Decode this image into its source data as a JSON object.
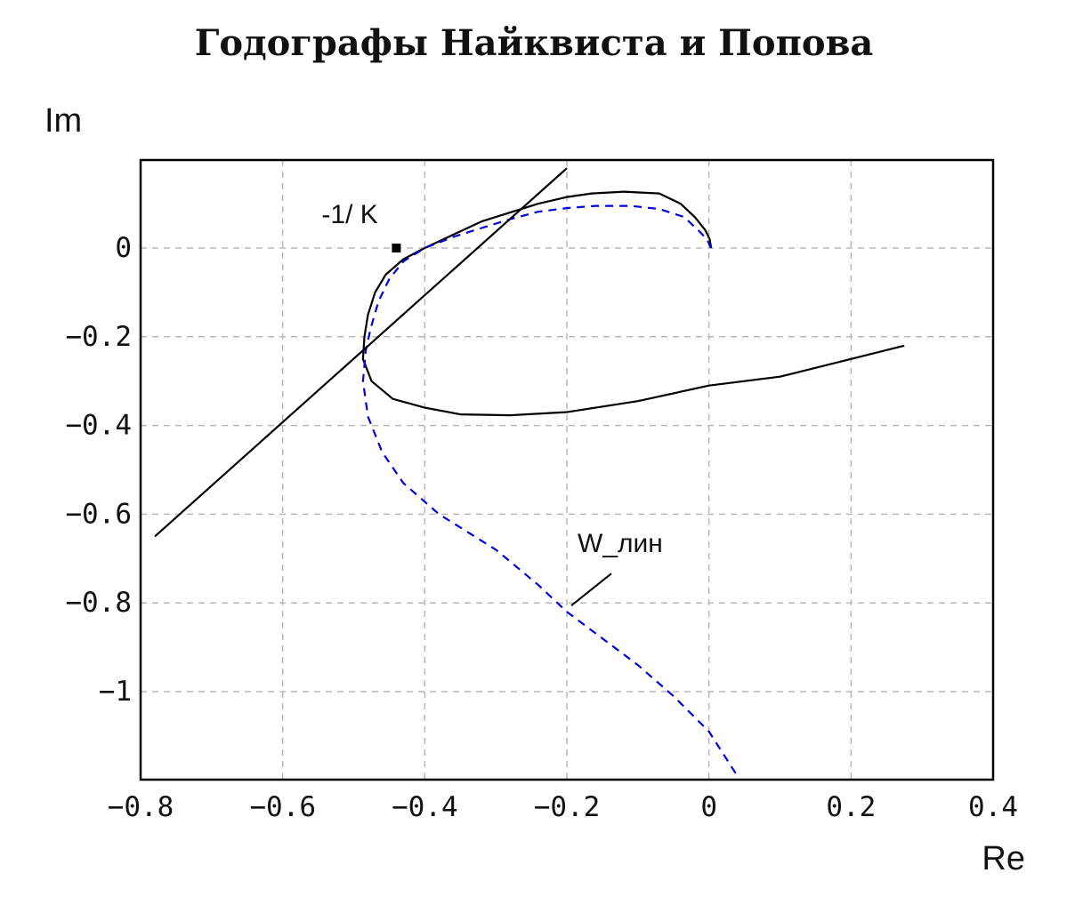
{
  "chart_data": {
    "type": "line",
    "title": "Годографы Найквиста и Попова",
    "xlabel": "Re",
    "ylabel": "Im",
    "xlim": [
      -0.8,
      0.4
    ],
    "ylim": [
      -1.19,
      0.2
    ],
    "grid": true,
    "x_ticks": [
      {
        "value": -0.8,
        "label": "−0.8"
      },
      {
        "value": -0.6,
        "label": "−0.6"
      },
      {
        "value": -0.4,
        "label": "−0.4"
      },
      {
        "value": -0.2,
        "label": "−0.2"
      },
      {
        "value": 0,
        "label": "0"
      },
      {
        "value": 0.2,
        "label": "0.2"
      },
      {
        "value": 0.4,
        "label": "0.4"
      }
    ],
    "y_ticks": [
      {
        "value": 0,
        "label": "0"
      },
      {
        "value": -0.2,
        "label": "−0.2"
      },
      {
        "value": -0.4,
        "label": "−0.4"
      },
      {
        "value": -0.6,
        "label": "−0.6"
      },
      {
        "value": -0.8,
        "label": "−0.8"
      },
      {
        "value": -1,
        "label": "−1"
      }
    ],
    "series": [
      {
        "color": "#000000",
        "style": "solid",
        "points": [
          [
            0.003,
            0.0
          ],
          [
            0.001,
            0.02
          ],
          [
            -0.005,
            0.04
          ],
          [
            -0.02,
            0.07
          ],
          [
            -0.04,
            0.1
          ],
          [
            -0.07,
            0.123
          ],
          [
            -0.12,
            0.127
          ],
          [
            -0.165,
            0.123
          ],
          [
            -0.2,
            0.115
          ],
          [
            -0.24,
            0.1
          ],
          [
            -0.28,
            0.08
          ],
          [
            -0.32,
            0.06
          ],
          [
            -0.36,
            0.03
          ],
          [
            -0.4,
            0.0
          ],
          [
            -0.43,
            -0.025
          ],
          [
            -0.455,
            -0.06
          ],
          [
            -0.47,
            -0.1
          ],
          [
            -0.48,
            -0.15
          ],
          [
            -0.485,
            -0.2
          ],
          [
            -0.487,
            -0.25
          ],
          [
            -0.475,
            -0.3
          ],
          [
            -0.445,
            -0.34
          ],
          [
            -0.4,
            -0.36
          ],
          [
            -0.35,
            -0.375
          ],
          [
            -0.28,
            -0.377
          ],
          [
            -0.2,
            -0.37
          ],
          [
            -0.1,
            -0.345
          ],
          [
            0.0,
            -0.31
          ],
          [
            0.1,
            -0.29
          ],
          [
            0.2,
            -0.25
          ],
          [
            0.275,
            -0.22
          ]
        ]
      },
      {
        "color": "#0000dd",
        "style": "dashed",
        "points": [
          [
            0.003,
            0.0
          ],
          [
            -0.003,
            0.02
          ],
          [
            -0.015,
            0.04
          ],
          [
            -0.035,
            0.07
          ],
          [
            -0.07,
            0.088
          ],
          [
            -0.11,
            0.095
          ],
          [
            -0.16,
            0.095
          ],
          [
            -0.2,
            0.09
          ],
          [
            -0.24,
            0.082
          ],
          [
            -0.28,
            0.065
          ],
          [
            -0.32,
            0.045
          ],
          [
            -0.36,
            0.025
          ],
          [
            -0.4,
            0.0
          ],
          [
            -0.43,
            -0.03
          ],
          [
            -0.45,
            -0.07
          ],
          [
            -0.465,
            -0.12
          ],
          [
            -0.476,
            -0.18
          ],
          [
            -0.483,
            -0.23
          ],
          [
            -0.487,
            -0.3
          ],
          [
            -0.48,
            -0.38
          ],
          [
            -0.46,
            -0.46
          ],
          [
            -0.43,
            -0.53
          ],
          [
            -0.38,
            -0.6
          ],
          [
            -0.3,
            -0.68
          ],
          [
            -0.24,
            -0.76
          ],
          [
            -0.2,
            -0.82
          ],
          [
            -0.15,
            -0.88
          ],
          [
            -0.1,
            -0.94
          ],
          [
            -0.05,
            -1.01
          ],
          [
            0.0,
            -1.09
          ],
          [
            0.04,
            -1.19
          ]
        ]
      },
      {
        "color": "#000000",
        "style": "solid",
        "points": [
          [
            -0.78,
            -0.65
          ],
          [
            -0.2,
            0.18
          ]
        ]
      }
    ],
    "annotations": [
      {
        "text": "-1/ K",
        "x": -0.44,
        "y": 0.0,
        "marker": "square"
      },
      {
        "text": "W_лин",
        "x": -0.2,
        "y": -0.81
      }
    ]
  }
}
